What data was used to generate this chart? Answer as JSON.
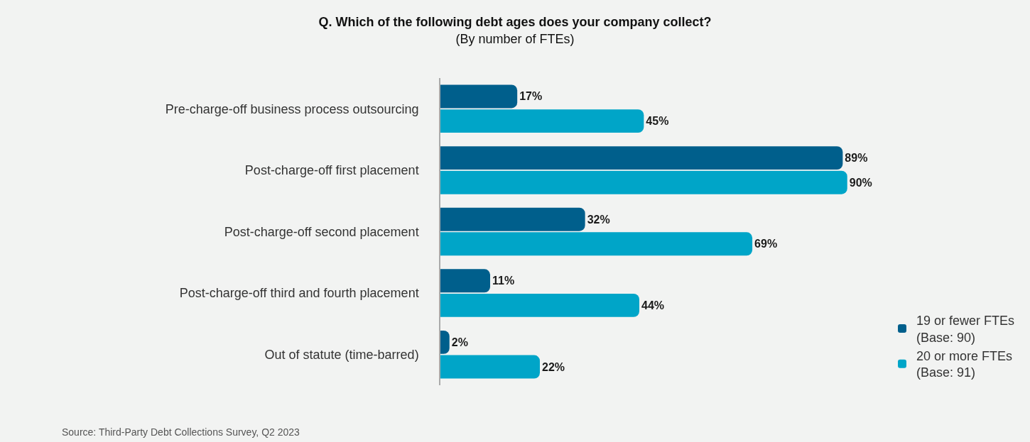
{
  "chart_data": {
    "type": "bar",
    "orientation": "horizontal",
    "title": "Q. Which of the following debt ages does your company collect?",
    "subtitle": "(By number of FTEs)",
    "categories": [
      "Pre-charge-off business process outsourcing",
      "Post-charge-off first placement",
      "Post-charge-off second placement",
      "Post-charge-off third and fourth placement",
      "Out of statute (time-barred)"
    ],
    "series": [
      {
        "name": "19 or fewer FTEs\n(Base: 90)",
        "color": "#005f8c",
        "values": [
          17,
          89,
          32,
          11,
          2
        ],
        "value_labels": [
          "17%",
          "89%",
          "32%",
          "11%",
          "2%"
        ]
      },
      {
        "name": "20 or more FTEs\n(Base: 91)",
        "color": "#00a5c8",
        "values": [
          45,
          90,
          69,
          44,
          22
        ],
        "value_labels": [
          "45%",
          "90%",
          "69%",
          "44%",
          "22%"
        ]
      }
    ],
    "tick_labels": "y",
    "grid": false,
    "legend": "bottom right",
    "annotations": [
      "Source: Third-Party Debt Collections Survey, Q2 2023"
    ]
  }
}
